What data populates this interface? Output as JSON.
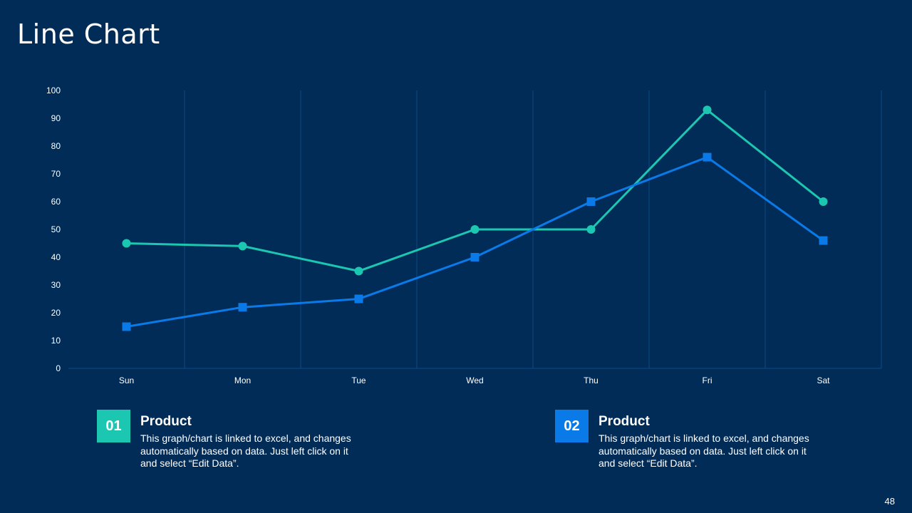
{
  "slide": {
    "title": "Line Chart",
    "page_number": "48"
  },
  "colors": {
    "background": "#002c57",
    "series1": "#1cc7b1",
    "series2": "#0a7ae8",
    "grid": "#0d4a86"
  },
  "chart_data": {
    "type": "line",
    "title": "",
    "xlabel": "",
    "ylabel": "",
    "categories": [
      "Sun",
      "Mon",
      "Tue",
      "Wed",
      "Thu",
      "Fri",
      "Sat"
    ],
    "ylim": [
      0,
      100
    ],
    "yticks": [
      "0",
      "10",
      "20",
      "30",
      "40",
      "50",
      "60",
      "70",
      "80",
      "90",
      "100"
    ],
    "grid": "vertical",
    "legend": "none",
    "series": [
      {
        "name": "Product 01",
        "marker": "circle",
        "values": [
          45,
          44,
          35,
          50,
          50,
          93,
          60
        ]
      },
      {
        "name": "Product 02",
        "marker": "square",
        "values": [
          15,
          22,
          25,
          40,
          60,
          76,
          46
        ]
      }
    ]
  },
  "legend_items": [
    {
      "number": "01",
      "heading": "Product",
      "text": "This graph/chart is linked to excel, and changes automatically based on data. Just left click on it and select “Edit Data”."
    },
    {
      "number": "02",
      "heading": "Product",
      "text": "This graph/chart is linked to excel, and changes automatically based on data. Just left click on it and select “Edit Data”."
    }
  ]
}
